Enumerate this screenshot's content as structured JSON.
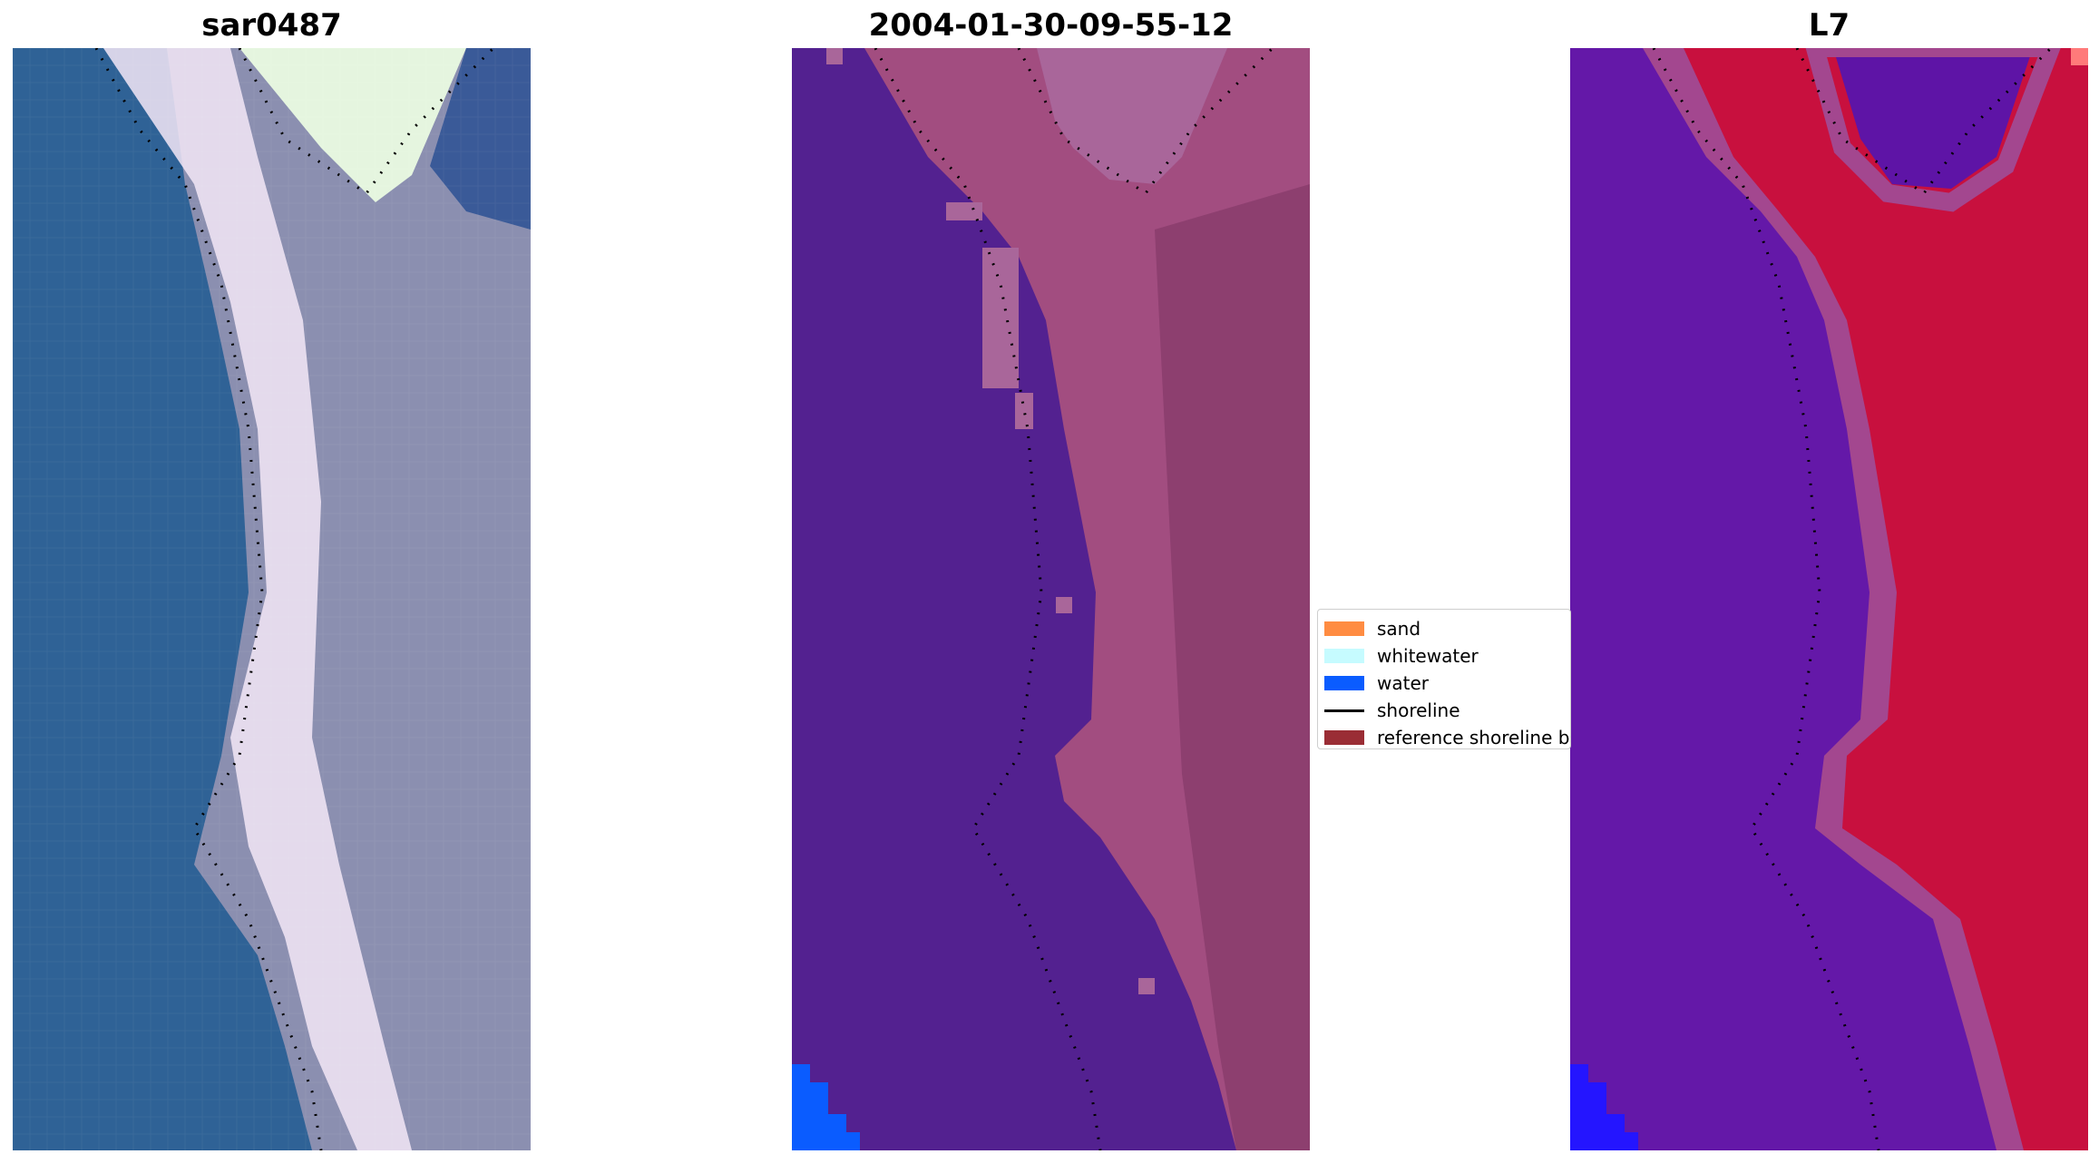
{
  "panels": [
    {
      "title": "sar0487"
    },
    {
      "title": "2004-01-30-09-55-12"
    },
    {
      "title": "L7"
    }
  ],
  "legend": {
    "items": [
      {
        "label": "sand",
        "color": "#ff8c42"
      },
      {
        "label": "whitewater",
        "color": "#c6fbff"
      },
      {
        "label": "water",
        "color": "#0a5cff"
      },
      {
        "label": "shoreline",
        "color": "#000000"
      },
      {
        "label": "reference shoreline buffer",
        "color": "#9a2d35"
      }
    ]
  },
  "colors": {
    "rgb_water": "#2f6296",
    "rgb_whitewater": "#f3e8f7",
    "classified_water": "#532190",
    "classified_land": "#a24d80",
    "index_water": "#6418a8",
    "index_land": "#c8103e"
  }
}
